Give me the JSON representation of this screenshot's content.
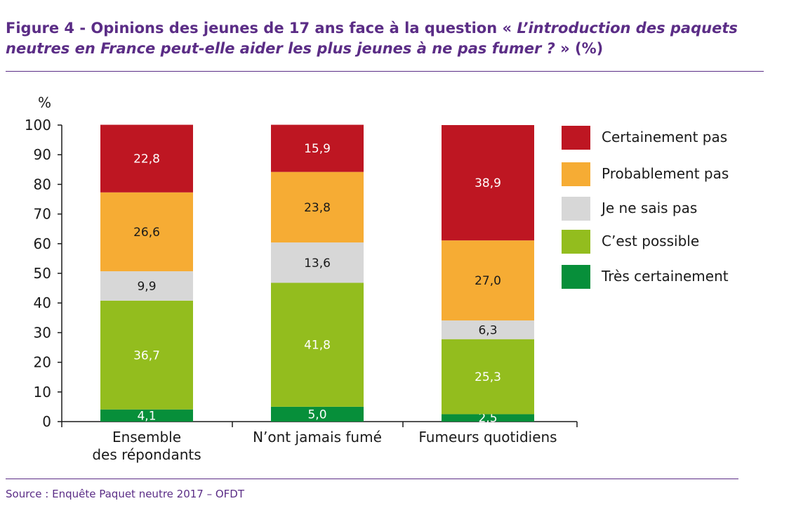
{
  "title": {
    "part1": "Figure 4 - Opinions des jeunes de 17 ans face à la question « ",
    "part_italic": "L’introduction des paquets neutres en France peut-elle aider les plus jeunes à ne pas fumer ?",
    "part2": " » (%)"
  },
  "source": "Source : Enquête Paquet neutre 2017 – OFDT",
  "chart_data": {
    "type": "bar",
    "stacked": true,
    "ylabel": "%",
    "ylim": [
      0,
      100
    ],
    "yticks": [
      0,
      10,
      20,
      30,
      40,
      50,
      60,
      70,
      80,
      90,
      100
    ],
    "categories": [
      [
        "Ensemble",
        "des répondants"
      ],
      [
        "N’ont jamais fumé"
      ],
      [
        "Fumeurs quotidiens"
      ]
    ],
    "series": [
      {
        "name": "Très certainement",
        "color": "#078f3a",
        "values": [
          4.1,
          5.0,
          2.5
        ],
        "labels": [
          "4,1",
          "5,0",
          "2,5"
        ],
        "label_color": "light"
      },
      {
        "name": "C’est possible",
        "color": "#93bd1e",
        "values": [
          36.7,
          41.8,
          25.3
        ],
        "labels": [
          "36,7",
          "41,8",
          "25,3"
        ],
        "label_color": "light"
      },
      {
        "name": "Je ne sais pas",
        "color": "#d7d7d7",
        "values": [
          9.9,
          13.6,
          6.3
        ],
        "labels": [
          "9,9",
          "13,6",
          "6,3"
        ],
        "label_color": "dark"
      },
      {
        "name": "Probablement pas",
        "color": "#f6ac34",
        "values": [
          26.6,
          23.8,
          27.0
        ],
        "labels": [
          "26,6",
          "23,8",
          "27,0"
        ],
        "label_color": "dark"
      },
      {
        "name": "Certainement pas",
        "color": "#be1622",
        "values": [
          22.8,
          15.9,
          38.9
        ],
        "labels": [
          "22,8",
          "15,9",
          "38,9"
        ],
        "label_color": "light"
      }
    ],
    "legend_order": [
      "Certainement pas",
      "Probablement pas",
      "Je ne sais pas",
      "C’est possible",
      "Très certainement"
    ],
    "legend_position": "right",
    "grid": false
  }
}
